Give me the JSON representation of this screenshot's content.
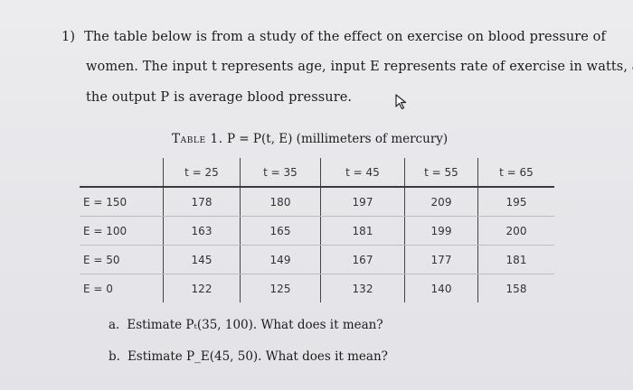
{
  "problem": {
    "number": "1)",
    "line1": "The table below is from a study of the effect on exercise on blood pressure of",
    "line2": "women. The input t represents age, input E represents rate of exercise in watts, and",
    "line3": "the output P is average blood pressure."
  },
  "table": {
    "caption_label": "Table 1.",
    "caption_formula": "P = P(t, E) (millimeters of mercury)",
    "column_headers": [
      "t = 25",
      "t = 35",
      "t = 45",
      "t = 55",
      "t = 65"
    ],
    "rows": [
      {
        "label": "E = 150",
        "values": [
          "178",
          "180",
          "197",
          "209",
          "195"
        ]
      },
      {
        "label": "E = 100",
        "values": [
          "163",
          "165",
          "181",
          "199",
          "200"
        ]
      },
      {
        "label": "E = 50",
        "values": [
          "145",
          "149",
          "167",
          "177",
          "181"
        ]
      },
      {
        "label": "E = 0",
        "values": [
          "122",
          "125",
          "132",
          "140",
          "158"
        ]
      }
    ]
  },
  "questions": {
    "a_letter": "a.",
    "a_text": "Estimate Pₜ(35, 100). What does it mean?",
    "b_letter": "b.",
    "b_text": "Estimate P_E(45, 50). What does it mean?"
  },
  "icons": {
    "cursor": "mouse-pointer-icon"
  }
}
